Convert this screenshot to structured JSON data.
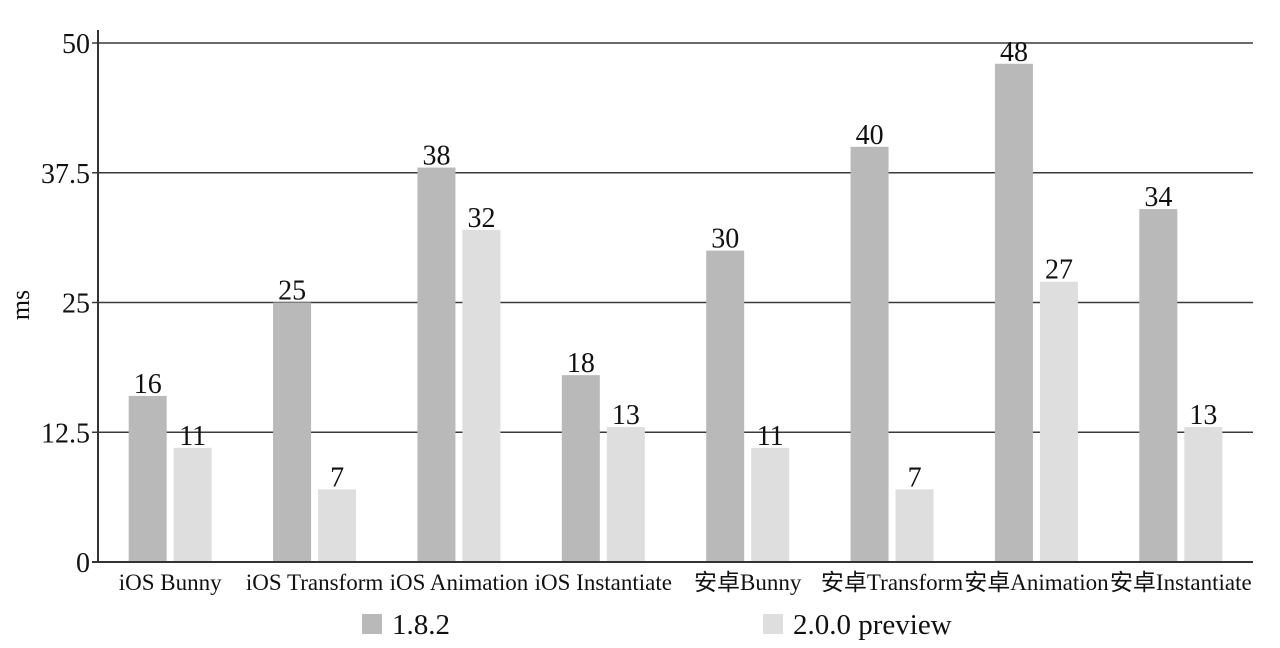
{
  "chart_data": {
    "type": "bar",
    "categories": [
      "iOS Bunny",
      "iOS Transform",
      "iOS Animation",
      "iOS Instantiate",
      "安卓Bunny",
      "安卓Transform",
      "安卓Animation",
      "安卓Instantiate"
    ],
    "series": [
      {
        "name": "1.8.2",
        "values": [
          16,
          25,
          38,
          18,
          30,
          40,
          48,
          34
        ],
        "color": "#b9b9b9"
      },
      {
        "name": "2.0.0 preview",
        "values": [
          11,
          7,
          32,
          13,
          11,
          7,
          27,
          13
        ],
        "color": "#dedede"
      }
    ],
    "ylabel": "ms",
    "ylim": [
      0,
      50
    ],
    "yticks": [
      0,
      12.5,
      25,
      37.5,
      50
    ],
    "grid": true,
    "legend_position": "bottom"
  }
}
